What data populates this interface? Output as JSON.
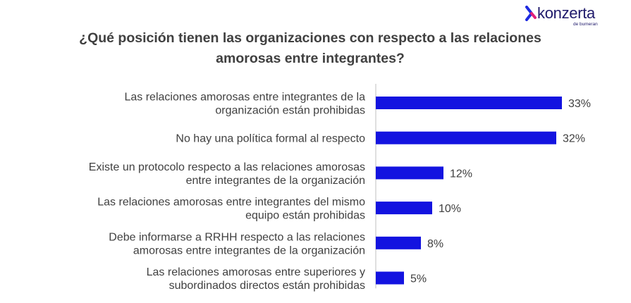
{
  "brand": {
    "name": "konzerta",
    "tagline": "de bumeran",
    "logo_icon": "chevron-k-logo-icon",
    "logo_color": "#1f1a6b",
    "mark_color_a": "#1f2be0",
    "mark_color_b": "#e0217a"
  },
  "title_lines": [
    "¿Qué posición tienen las organizaciones con respecto a las relaciones",
    "amorosas entre integrantes?"
  ],
  "chart_data": {
    "type": "bar",
    "orientation": "horizontal",
    "title": "¿Qué posición tienen las organizaciones con respecto a las relaciones amorosas entre integrantes?",
    "categories": [
      [
        "Las relaciones amorosas entre integrantes de la",
        "organización están prohibidas"
      ],
      [
        "No hay una política formal al respecto"
      ],
      [
        "Existe un protocolo respecto a las relaciones amorosas",
        "entre integrantes de la organización"
      ],
      [
        "Las relaciones amorosas entre integrantes del mismo",
        "equipo están prohibidas"
      ],
      [
        "Debe informarse a RRHH respecto a las relaciones",
        "amorosas entre integrantes de la organización"
      ],
      [
        "Las relaciones amorosas entre superiores y",
        "subordinados directos están prohibidas"
      ]
    ],
    "values": [
      33,
      32,
      12,
      10,
      8,
      5
    ],
    "value_labels": [
      "33%",
      "32%",
      "12%",
      "10%",
      "8%",
      "5%"
    ],
    "unit": "%",
    "bar_color": "#1313e0",
    "axis_color": "#bfbfbf",
    "grid": false,
    "legend": "none"
  }
}
